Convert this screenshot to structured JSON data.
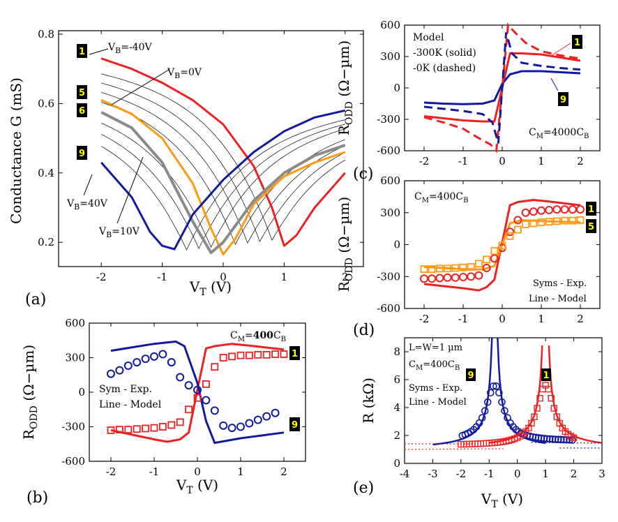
{
  "colors": {
    "red": "#ee2020",
    "blue": "#101aa0",
    "orange": "#ff9a10",
    "gray": "#8a8a8a",
    "black": "#000000",
    "badge_text": "#ffff00",
    "dotted_red": "#ee2020",
    "dotted_blue": "#101aa0"
  },
  "chart_data": [
    {
      "id": "a",
      "type": "line",
      "panel_label": "(a)",
      "ylabel": "Conductance G (mS)",
      "xlabel_main": "V",
      "xlabel_sub": "T",
      "xlabel_unit": " (V)",
      "xlim": [
        -2.7,
        2.3
      ],
      "ylim": [
        0.13,
        0.81
      ],
      "xticks": [
        -2,
        -1,
        0,
        1,
        2
      ],
      "xtick_labels": [
        "-2",
        "-1",
        "0",
        "1",
        "2"
      ],
      "yticks": [
        0.2,
        0.4,
        0.6,
        0.8
      ],
      "ytick_labels": [
        "0.2",
        "0.4",
        "0.6",
        "0.8"
      ],
      "annotations": [
        {
          "main": "V",
          "sub": "B",
          "rest": "=-40V"
        },
        {
          "main": "V",
          "sub": "B",
          "rest": "=0V"
        },
        {
          "main": "V",
          "sub": "B",
          "rest": "=40V"
        },
        {
          "main": "V",
          "sub": "B",
          "rest": "=10V"
        }
      ],
      "badges": [
        "1",
        "5",
        "6",
        "9"
      ],
      "thin_series_dirac_points": [
        -0.6,
        -0.4,
        -0.2,
        0.2,
        0.4,
        0.6,
        0.8
      ],
      "series": [
        {
          "name": "1",
          "dirac": 1.0,
          "color": "red",
          "width": 3,
          "x": [
            -2,
            -1.5,
            -1,
            -0.5,
            0,
            0.5,
            0.8,
            1.0,
            1.2,
            1.5,
            2
          ],
          "y": [
            0.73,
            0.7,
            0.66,
            0.61,
            0.54,
            0.42,
            0.3,
            0.19,
            0.22,
            0.3,
            0.4
          ]
        },
        {
          "name": "5",
          "dirac": 0.0,
          "color": "orange",
          "width": 3,
          "x": [
            -2,
            -1.5,
            -1,
            -0.5,
            -0.2,
            0,
            0.2,
            0.5,
            1,
            1.5,
            2
          ],
          "y": [
            0.61,
            0.57,
            0.5,
            0.37,
            0.24,
            0.165,
            0.21,
            0.31,
            0.39,
            0.43,
            0.46
          ]
        },
        {
          "name": "6",
          "dirac": -0.2,
          "color": "gray",
          "width": 4,
          "x": [
            -2,
            -1.5,
            -1,
            -0.5,
            -0.2,
            0,
            0.5,
            1,
            1.5,
            2
          ],
          "y": [
            0.575,
            0.53,
            0.43,
            0.26,
            0.17,
            0.2,
            0.32,
            0.4,
            0.45,
            0.48
          ]
        },
        {
          "name": "9",
          "dirac": -0.8,
          "color": "blue",
          "width": 3,
          "x": [
            -2,
            -1.5,
            -1.2,
            -1,
            -0.8,
            -0.5,
            0,
            0.5,
            1,
            1.5,
            2
          ],
          "y": [
            0.43,
            0.33,
            0.23,
            0.19,
            0.18,
            0.28,
            0.38,
            0.46,
            0.52,
            0.56,
            0.58
          ]
        }
      ]
    },
    {
      "id": "b",
      "type": "line",
      "panel_label": "(b)",
      "ylabel_main": "R",
      "ylabel_sub": "ODD",
      "ylabel_unit": " (Ω−µm)",
      "xlabel_main": "V",
      "xlabel_sub": "T",
      "xlabel_unit": " (V)",
      "xlim": [
        -2.5,
        2.5
      ],
      "ylim": [
        -600,
        600
      ],
      "xticks": [
        -2,
        -1,
        0,
        1,
        2
      ],
      "xtick_labels": [
        "-2",
        "-1",
        "0",
        "1",
        "2"
      ],
      "yticks": [
        -600,
        -300,
        0,
        300,
        600
      ],
      "ytick_labels": [
        "-600",
        "-300",
        "0",
        "300",
        "600"
      ],
      "legend_lines": [
        "Sym - Exp.",
        "Line - Model"
      ],
      "cm_label": {
        "main": "C",
        "sub": "M",
        "eq": "=",
        "bold": "400",
        "c2": "C",
        "sub2": "B"
      },
      "badges": [
        "1",
        "9"
      ],
      "series": [
        {
          "name": "model red",
          "color": "red",
          "kind": "line",
          "x": [
            -2,
            -1.5,
            -1,
            -0.7,
            -0.4,
            -0.2,
            0,
            0.2,
            0.4,
            0.8,
            1.2,
            2
          ],
          "y": [
            -330,
            -370,
            -410,
            -430,
            -410,
            -350,
            20,
            380,
            400,
            420,
            405,
            370
          ]
        },
        {
          "name": "model blue",
          "color": "blue",
          "kind": "line",
          "x": [
            -2,
            -1.5,
            -1,
            -0.5,
            -0.3,
            0,
            0.2,
            0.4,
            1,
            2
          ],
          "y": [
            360,
            390,
            420,
            440,
            400,
            80,
            -250,
            -440,
            -400,
            -350
          ]
        },
        {
          "name": "exp red",
          "color": "red",
          "kind": "square",
          "x": [
            -2,
            -1.8,
            -1.6,
            -1.4,
            -1.2,
            -1.0,
            -0.8,
            -0.6,
            -0.4,
            -0.2,
            0,
            0.2,
            0.4,
            0.6,
            0.8,
            1.0,
            1.2,
            1.4,
            1.6,
            1.8,
            2.0
          ],
          "y": [
            -330,
            -325,
            -325,
            -320,
            -315,
            -310,
            -300,
            -285,
            -260,
            -150,
            -50,
            70,
            220,
            300,
            310,
            320,
            320,
            325,
            325,
            330,
            330
          ]
        },
        {
          "name": "exp blue",
          "color": "blue",
          "kind": "circle",
          "x": [
            -2,
            -1.8,
            -1.6,
            -1.4,
            -1.2,
            -1.0,
            -0.8,
            -0.6,
            -0.4,
            -0.2,
            0,
            0.2,
            0.4,
            0.6,
            0.8,
            1.0,
            1.2,
            1.4,
            1.6,
            1.8
          ],
          "y": [
            160,
            190,
            230,
            260,
            290,
            310,
            330,
            260,
            130,
            60,
            20,
            -70,
            -160,
            -290,
            -310,
            -300,
            -270,
            -240,
            -210,
            -180
          ]
        }
      ]
    },
    {
      "id": "c",
      "type": "line",
      "panel_label": "(c)",
      "ylabel_main": "R",
      "ylabel_sub": "ODD",
      "ylabel_unit": " (Ω−µm)",
      "xlim": [
        -2.5,
        2.5
      ],
      "ylim": [
        -600,
        600
      ],
      "xticks": [
        -2,
        -1,
        0,
        1,
        2
      ],
      "xtick_labels": [
        "-2",
        "-1",
        "0",
        "1",
        "2"
      ],
      "yticks": [
        -600,
        -300,
        0,
        300,
        600
      ],
      "ytick_labels": [
        "-600",
        "-300",
        "0",
        "300",
        "600"
      ],
      "legend_lines": [
        "Model",
        "-300K (solid)",
        "-0K (dashed)"
      ],
      "cm_label": {
        "main": "C",
        "sub": "M",
        "eq": "=4000",
        "bold": "",
        "c2": "C",
        "sub2": "B"
      },
      "badges": [
        "1",
        "9"
      ],
      "series": [
        {
          "name": "red solid",
          "color": "red",
          "dash": false,
          "x": [
            -2,
            -1.5,
            -1,
            -0.5,
            -0.2,
            0,
            0.2,
            0.5,
            1,
            1.5,
            2
          ],
          "y": [
            -270,
            -290,
            -310,
            -320,
            -320,
            0,
            330,
            330,
            320,
            290,
            260
          ]
        },
        {
          "name": "blue solid",
          "color": "blue",
          "dash": false,
          "x": [
            -2,
            -1.5,
            -1,
            -0.5,
            -0.2,
            0,
            0.2,
            0.5,
            1,
            1.5,
            2
          ],
          "y": [
            -140,
            -150,
            -155,
            -150,
            -120,
            40,
            130,
            160,
            160,
            150,
            140
          ]
        },
        {
          "name": "red dashed",
          "color": "red",
          "dash": true,
          "x": [
            -2,
            -1.5,
            -1,
            -0.6,
            -0.3,
            -0.15,
            0.15,
            0.3,
            0.6,
            1,
            1.5,
            2
          ],
          "y": [
            -280,
            -330,
            -390,
            -480,
            -540,
            -600,
            600,
            540,
            430,
            350,
            310,
            280
          ]
        },
        {
          "name": "blue dashed",
          "color": "blue",
          "dash": true,
          "x": [
            -2,
            -1.5,
            -1,
            -0.5,
            -0.25,
            -0.1,
            0.1,
            0.25,
            0.5,
            1,
            1.5,
            2
          ],
          "y": [
            -180,
            -200,
            -220,
            -250,
            -330,
            -530,
            530,
            330,
            240,
            210,
            190,
            175
          ]
        }
      ]
    },
    {
      "id": "d",
      "type": "line",
      "panel_label": "(d)",
      "ylabel_main": "R",
      "ylabel_sub": "ODD",
      "ylabel_unit": " (Ω−µm)",
      "xlim": [
        -2.5,
        2.5
      ],
      "ylim": [
        -600,
        600
      ],
      "xticks": [
        -2,
        -1,
        0,
        1,
        2
      ],
      "xtick_labels": [
        "-2",
        "-1",
        "0",
        "1",
        "2"
      ],
      "yticks": [
        -600,
        -300,
        0,
        300,
        600
      ],
      "ytick_labels": [
        "-600",
        "-300",
        "0",
        "300",
        "600"
      ],
      "legend_lines": [
        "Syms - Exp.",
        "Line - Model"
      ],
      "cm_label": {
        "main": "C",
        "sub": "M",
        "eq": "=400",
        "bold": "",
        "c2": "C",
        "sub2": "B"
      },
      "badges": [
        "1",
        "5"
      ],
      "series": [
        {
          "name": "model red",
          "color": "red",
          "kind": "line",
          "x": [
            -2,
            -1.5,
            -1,
            -0.6,
            -0.4,
            -0.2,
            0,
            0.2,
            0.4,
            0.8,
            1.2,
            2
          ],
          "y": [
            -370,
            -390,
            -410,
            -430,
            -400,
            -330,
            20,
            370,
            400,
            420,
            405,
            370
          ]
        },
        {
          "name": "model orange",
          "color": "orange",
          "kind": "line",
          "x": [
            -2,
            -1.5,
            -1,
            -0.5,
            -0.2,
            0,
            0.2,
            0.5,
            1,
            1.5,
            2
          ],
          "y": [
            -210,
            -220,
            -230,
            -235,
            -200,
            0,
            200,
            230,
            220,
            215,
            210
          ]
        },
        {
          "name": "exp red",
          "color": "red",
          "kind": "circle",
          "x": [
            -2,
            -1.8,
            -1.6,
            -1.4,
            -1.2,
            -1.0,
            -0.8,
            -0.6,
            -0.4,
            -0.2,
            0,
            0.2,
            0.4,
            0.6,
            0.8,
            1.0,
            1.2,
            1.4,
            1.6,
            1.8,
            2.0
          ],
          "y": [
            -320,
            -320,
            -315,
            -310,
            -310,
            -305,
            -300,
            -290,
            -220,
            -130,
            -30,
            120,
            230,
            300,
            310,
            320,
            325,
            330,
            330,
            330,
            330
          ]
        },
        {
          "name": "exp orange",
          "color": "orange",
          "kind": "square",
          "x": [
            -2,
            -1.8,
            -1.6,
            -1.4,
            -1.2,
            -1.0,
            -0.8,
            -0.6,
            -0.4,
            -0.2,
            0,
            0.2,
            0.4,
            0.6,
            0.8,
            1.0,
            1.2,
            1.4,
            1.6,
            1.8,
            2.0
          ],
          "y": [
            -230,
            -230,
            -225,
            -225,
            -220,
            -215,
            -210,
            -180,
            -140,
            -60,
            -10,
            80,
            140,
            190,
            200,
            210,
            215,
            220,
            225,
            225,
            230
          ]
        }
      ]
    },
    {
      "id": "e",
      "type": "line",
      "panel_label": "(e)",
      "ylabel_main": "R",
      "ylabel_unit": " (kΩ)",
      "xlabel_main": "V",
      "xlabel_sub": "T",
      "xlabel_unit": " (V)",
      "xlim": [
        -4,
        3
      ],
      "ylim": [
        0,
        9
      ],
      "xticks": [
        -4,
        -3,
        -2,
        -1,
        0,
        1,
        2,
        3
      ],
      "xtick_labels": [
        "-4",
        "-3",
        "-2",
        "-1",
        "0",
        "1",
        "2",
        "3"
      ],
      "yticks": [
        0,
        2,
        4,
        6,
        8
      ],
      "ytick_labels": [
        "0",
        "2",
        "4",
        "6",
        "8"
      ],
      "legend_lines": [
        "L=W=1 µm",
        "Syms - Exp.",
        "Line - Model"
      ],
      "cm_label": {
        "main": "C",
        "sub": "M",
        "eq": "=400",
        "bold": "",
        "c2": "C",
        "sub2": "B"
      },
      "badges": [
        "9",
        "1"
      ],
      "series": [
        {
          "name": "model blue",
          "color": "blue",
          "kind": "peak",
          "center": -0.8,
          "amp": 1.0,
          "offset": 0.9,
          "x0": -3,
          "x1": 1
        },
        {
          "name": "model red",
          "color": "red",
          "kind": "peak",
          "center": 1.0,
          "amp": 1.05,
          "offset": 0.95,
          "x0": -1,
          "x1": 3
        },
        {
          "name": "exp blue",
          "color": "blue",
          "kind": "circles",
          "center": -0.8,
          "peak": 5.6,
          "base": 1.6,
          "width": 0.38,
          "x0": -1.95,
          "x1": 2.0,
          "step": 0.1
        },
        {
          "name": "exp red",
          "color": "red",
          "kind": "squares",
          "center": 1.0,
          "peak": 5.6,
          "base": 1.3,
          "width": 0.38,
          "x0": -2.0,
          "x1": 2.0,
          "step": 0.1
        },
        {
          "name": "dotted red",
          "color": "red",
          "kind": "dotted",
          "x": [
            -4,
            -1.5
          ],
          "y": [
            1.4,
            1.4
          ]
        },
        {
          "name": "dotted red 2",
          "color": "red",
          "kind": "dotted",
          "x": [
            -4,
            -0.5
          ],
          "y": [
            1.0,
            1.05
          ]
        },
        {
          "name": "dotted blue",
          "color": "blue",
          "kind": "dotted",
          "x": [
            1.5,
            3
          ],
          "y": [
            1.1,
            1.1
          ]
        },
        {
          "name": "dotted blue 2",
          "color": "blue",
          "kind": "dotted",
          "x": [
            0.5,
            3
          ],
          "y": [
            1.5,
            1.45
          ]
        }
      ]
    }
  ]
}
